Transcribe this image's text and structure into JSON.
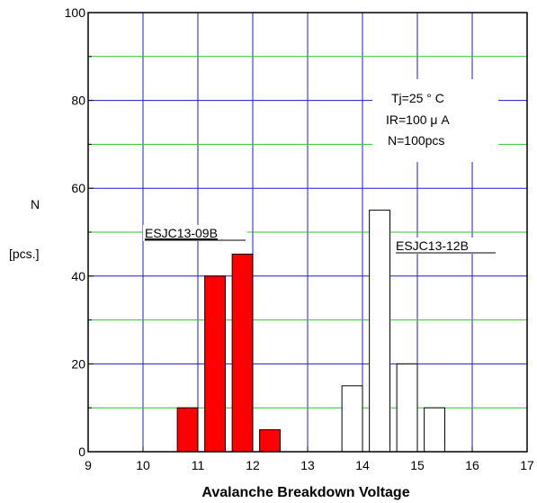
{
  "chart_data": {
    "type": "bar",
    "xlabel": "Avalanche Breakdown Voltage",
    "ylabel": "N",
    "ylabel_unit": "[pcs.]",
    "xlim": [
      9,
      17
    ],
    "ylim": [
      0,
      100
    ],
    "x_ticks": [
      9,
      10,
      11,
      12,
      13,
      14,
      15,
      16,
      17
    ],
    "y_ticks": [
      0,
      20,
      40,
      60,
      80,
      100
    ],
    "grid": true,
    "grid_colors": {
      "vertical": "#1c1cc8",
      "horizontal_major": "#1c1cc8",
      "horizontal_minor": "#2ec42e"
    },
    "annotation": [
      "Tj=25 ° C",
      "IR=100 μ A",
      "N=100pcs"
    ],
    "series": [
      {
        "name": "ESJC13-09B",
        "color": "#ff0000",
        "bins": [
          [
            10.625,
            11.0
          ],
          [
            11.125,
            11.5
          ],
          [
            11.625,
            12.0
          ],
          [
            12.125,
            12.5
          ]
        ],
        "values": [
          10,
          40,
          45,
          5
        ]
      },
      {
        "name": "ESJC13-12B",
        "color": "#ffffff",
        "bins": [
          [
            13.625,
            14.0
          ],
          [
            14.125,
            14.5
          ],
          [
            14.625,
            15.0
          ],
          [
            15.125,
            15.5
          ]
        ],
        "values": [
          15,
          55,
          20,
          10
        ]
      }
    ]
  }
}
